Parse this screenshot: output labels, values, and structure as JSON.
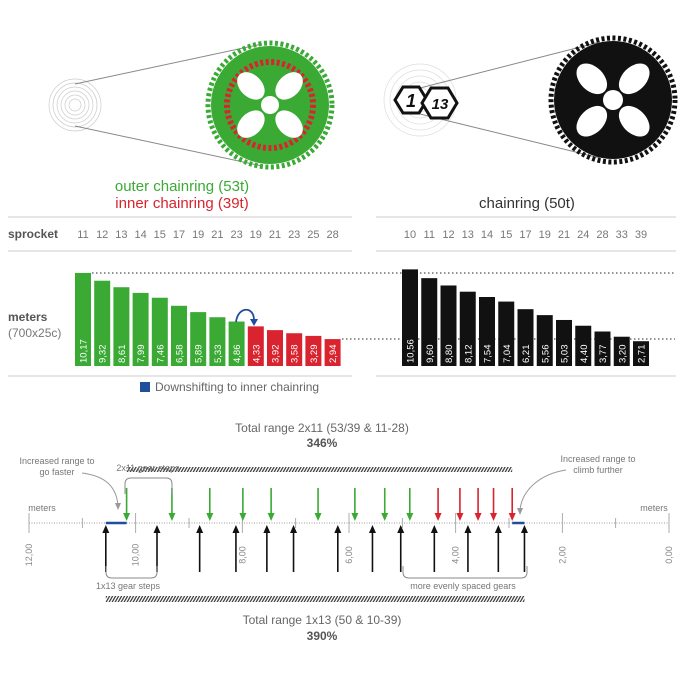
{
  "colors": {
    "outer": "#3aaa35",
    "inner": "#d9232e",
    "single": "#111111",
    "downshift": "#1f4e9c",
    "text": "#666666"
  },
  "illustrations": {
    "left": {
      "type": "double chainring 53/39",
      "color_outer": "#3aaa35",
      "color_inner": "#d9232e"
    },
    "right": {
      "type": "single chainring 50",
      "logo_text": "1/13",
      "color": "#111111"
    }
  },
  "left_header": {
    "outer_label": "outer chainring (53t)",
    "inner_label": "inner chainring (39t)"
  },
  "right_header": {
    "label": "chainring (50t)"
  },
  "row_labels": {
    "sprocket": "sprocket",
    "meters": "meters",
    "meters_unit": "(700x25c)"
  },
  "legend": {
    "label": "Downshifting to inner chainring",
    "color": "#1f4e9c"
  },
  "chart_data": [
    {
      "type": "bar",
      "title": "outer chainring (53t) / inner chainring (39t)",
      "xlabel": "sprocket",
      "ylabel": "meters (700x25c)",
      "categories": [
        "11",
        "12",
        "13",
        "14",
        "15",
        "17",
        "19",
        "21",
        "23",
        "19",
        "21",
        "23",
        "25",
        "28"
      ],
      "values": [
        10.17,
        9.32,
        8.61,
        7.99,
        7.46,
        6.58,
        5.89,
        5.33,
        4.86,
        4.33,
        3.92,
        3.58,
        3.29,
        2.94
      ],
      "value_labels": [
        "10,17",
        "9,32",
        "8,61",
        "7,99",
        "7,46",
        "6,58",
        "5,89",
        "5,33",
        "4,86",
        "4,33",
        "3,92",
        "3,58",
        "3,29",
        "2,94"
      ],
      "chainring": [
        "outer",
        "outer",
        "outer",
        "outer",
        "outer",
        "outer",
        "outer",
        "outer",
        "outer",
        "inner",
        "inner",
        "inner",
        "inner",
        "inner"
      ]
    },
    {
      "type": "bar",
      "title": "chainring (50t)",
      "xlabel": "sprocket",
      "ylabel": "meters (700x25c)",
      "categories": [
        "10",
        "11",
        "12",
        "13",
        "14",
        "15",
        "17",
        "19",
        "21",
        "24",
        "28",
        "33",
        "39"
      ],
      "values": [
        10.56,
        9.6,
        8.8,
        8.12,
        7.54,
        7.04,
        6.21,
        5.56,
        5.03,
        4.4,
        3.77,
        3.2,
        2.71
      ],
      "value_labels": [
        "10,56",
        "9,60",
        "8,80",
        "8,12",
        "7,54",
        "7,04",
        "6,21",
        "5,56",
        "5,03",
        "4,40",
        "3,77",
        "3,20",
        "2,71"
      ]
    },
    {
      "type": "scatter",
      "axis_label": "meters",
      "axis_range": [
        12,
        0
      ],
      "tick_labels": [
        "12,00",
        "10,00",
        "8,00",
        "6,00",
        "4,00",
        "2,00",
        "0,00"
      ],
      "tick_values": [
        12,
        10,
        8,
        6,
        4,
        2,
        0
      ],
      "top_title": "Total range 2x11 (53/39 & 11-28)",
      "top_percent": "346%",
      "bottom_title": "Total range 1x13 (50 & 10-39)",
      "bottom_percent": "390%",
      "annotations": {
        "faster": [
          "Increased range to",
          "go faster"
        ],
        "climb": [
          "Increased range to",
          "climb further"
        ],
        "steps_2x11": "2x11 gear steps",
        "steps_1x13": "1x13 gear steps",
        "even": "more evenly spaced gears"
      }
    }
  ]
}
